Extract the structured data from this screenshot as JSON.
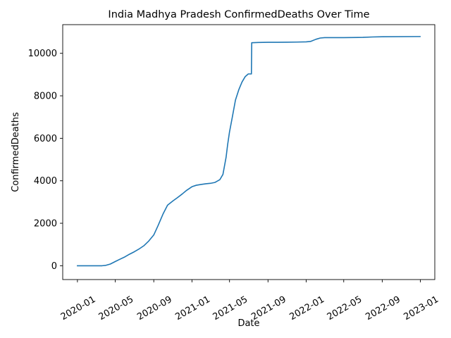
{
  "chart_data": {
    "type": "line",
    "title": "India Madhya Pradesh ConfirmedDeaths Over Time",
    "xlabel": "Date",
    "ylabel": "ConfirmedDeaths",
    "xlim": [
      "2019-11-15",
      "2023-02-16"
    ],
    "ylim": [
      -650,
      11350
    ],
    "grid": false,
    "line_color": "#1f77b4",
    "x_ticks": [
      "2020-01",
      "2020-05",
      "2020-09",
      "2021-01",
      "2021-05",
      "2021-09",
      "2022-01",
      "2022-05",
      "2022-09",
      "2023-01"
    ],
    "y_ticks": [
      0,
      2000,
      4000,
      6000,
      8000,
      10000
    ],
    "y_tick_labels": [
      "0",
      "2000",
      "4000",
      "6000",
      "8000",
      "10000"
    ],
    "series": [
      {
        "x": [
          "2020-01-01",
          "2020-03-20",
          "2020-04-01",
          "2020-04-15",
          "2020-05-01",
          "2020-05-15",
          "2020-06-01",
          "2020-06-15",
          "2020-07-01",
          "2020-07-15",
          "2020-08-01",
          "2020-08-15",
          "2020-09-01",
          "2020-09-15",
          "2020-10-01",
          "2020-10-15",
          "2020-11-01",
          "2020-11-15",
          "2020-12-01",
          "2020-12-15",
          "2021-01-01",
          "2021-01-15",
          "2021-02-01",
          "2021-02-15",
          "2021-03-01",
          "2021-03-15",
          "2021-03-31",
          "2021-04-10",
          "2021-04-20",
          "2021-04-25",
          "2021-05-01",
          "2021-05-10",
          "2021-05-20",
          "2021-05-31",
          "2021-06-10",
          "2021-06-20",
          "2021-06-30",
          "2021-07-05",
          "2021-07-10",
          "2021-07-11",
          "2021-08-01",
          "2021-09-01",
          "2021-10-01",
          "2021-11-01",
          "2021-12-01",
          "2022-01-01",
          "2022-01-15",
          "2022-02-01",
          "2022-02-15",
          "2022-03-01",
          "2022-05-01",
          "2022-07-01",
          "2022-08-01",
          "2022-09-01",
          "2022-12-31"
        ],
        "values": [
          0,
          0,
          20,
          80,
          200,
          300,
          420,
          540,
          660,
          780,
          950,
          1150,
          1450,
          1900,
          2450,
          2850,
          3050,
          3200,
          3380,
          3550,
          3720,
          3790,
          3830,
          3860,
          3880,
          3920,
          4050,
          4300,
          5100,
          5700,
          6300,
          7000,
          7800,
          8300,
          8650,
          8900,
          9030,
          9030,
          9030,
          10500,
          10510,
          10520,
          10520,
          10525,
          10530,
          10540,
          10560,
          10660,
          10720,
          10740,
          10740,
          10750,
          10770,
          10780,
          10790
        ]
      }
    ]
  }
}
